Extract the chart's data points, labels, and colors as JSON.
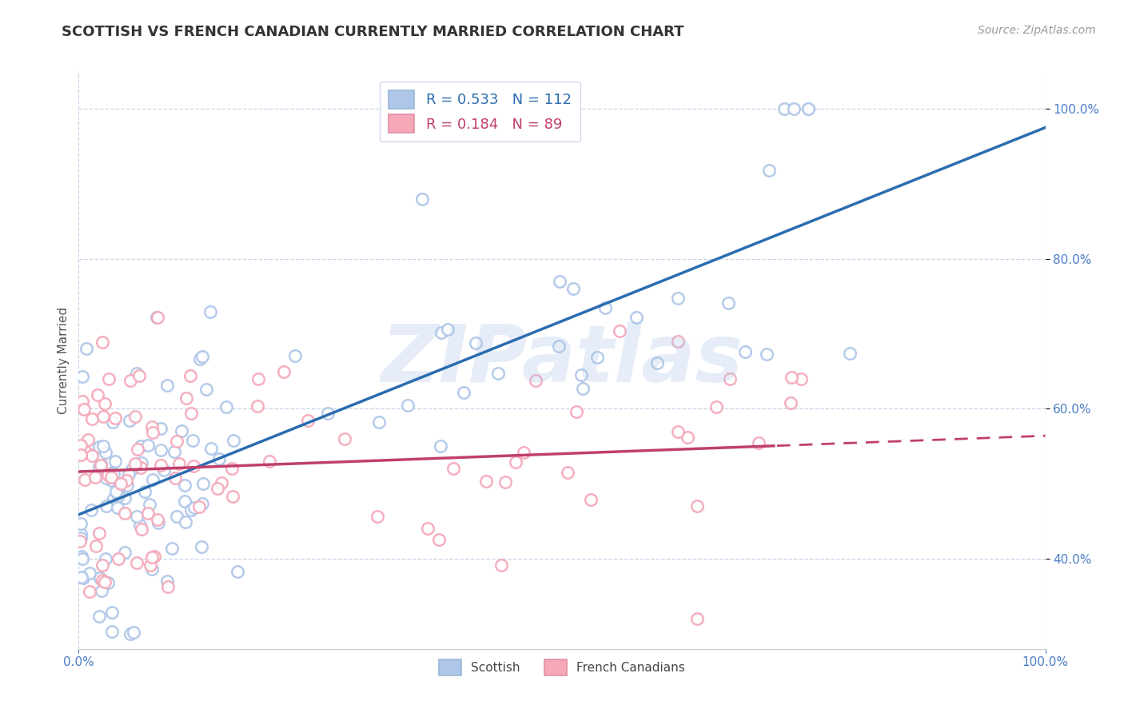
{
  "title": "SCOTTISH VS FRENCH CANADIAN CURRENTLY MARRIED CORRELATION CHART",
  "source_text": "Source: ZipAtlas.com",
  "ylabel": "Currently Married",
  "watermark": "ZIPatlas",
  "bottom_legend": [
    "Scottish",
    "French Canadians"
  ],
  "scottish_color": "#aec6e8",
  "french_color": "#f4a8b8",
  "scottish_edge_color": "#aec6e8",
  "french_edge_color": "#f4a8b8",
  "trend_scottish_color": "#2b6cb0",
  "trend_french_color": "#c0406a",
  "background_color": "#ffffff",
  "grid_color": "#c8d4e8",
  "tick_color": "#4a7cc7",
  "title_color": "#333333",
  "source_color": "#999999",
  "legend_r_sc": "R = 0.533",
  "legend_n_sc": "N = 112",
  "legend_r_fr": "R = 0.184",
  "legend_n_fr": "N = 89",
  "xlim": [
    0,
    1
  ],
  "ylim": [
    0.28,
    1.05
  ],
  "yticks": [
    0.4,
    0.6,
    0.8,
    1.0
  ],
  "ytick_labels": [
    "40.0%",
    "60.0%",
    "80.0%",
    "100.0%"
  ],
  "xtick_labels": [
    "0.0%",
    "100.0%"
  ],
  "title_fontsize": 13,
  "tick_fontsize": 11,
  "legend_fontsize": 13,
  "source_fontsize": 10,
  "ylabel_fontsize": 11
}
